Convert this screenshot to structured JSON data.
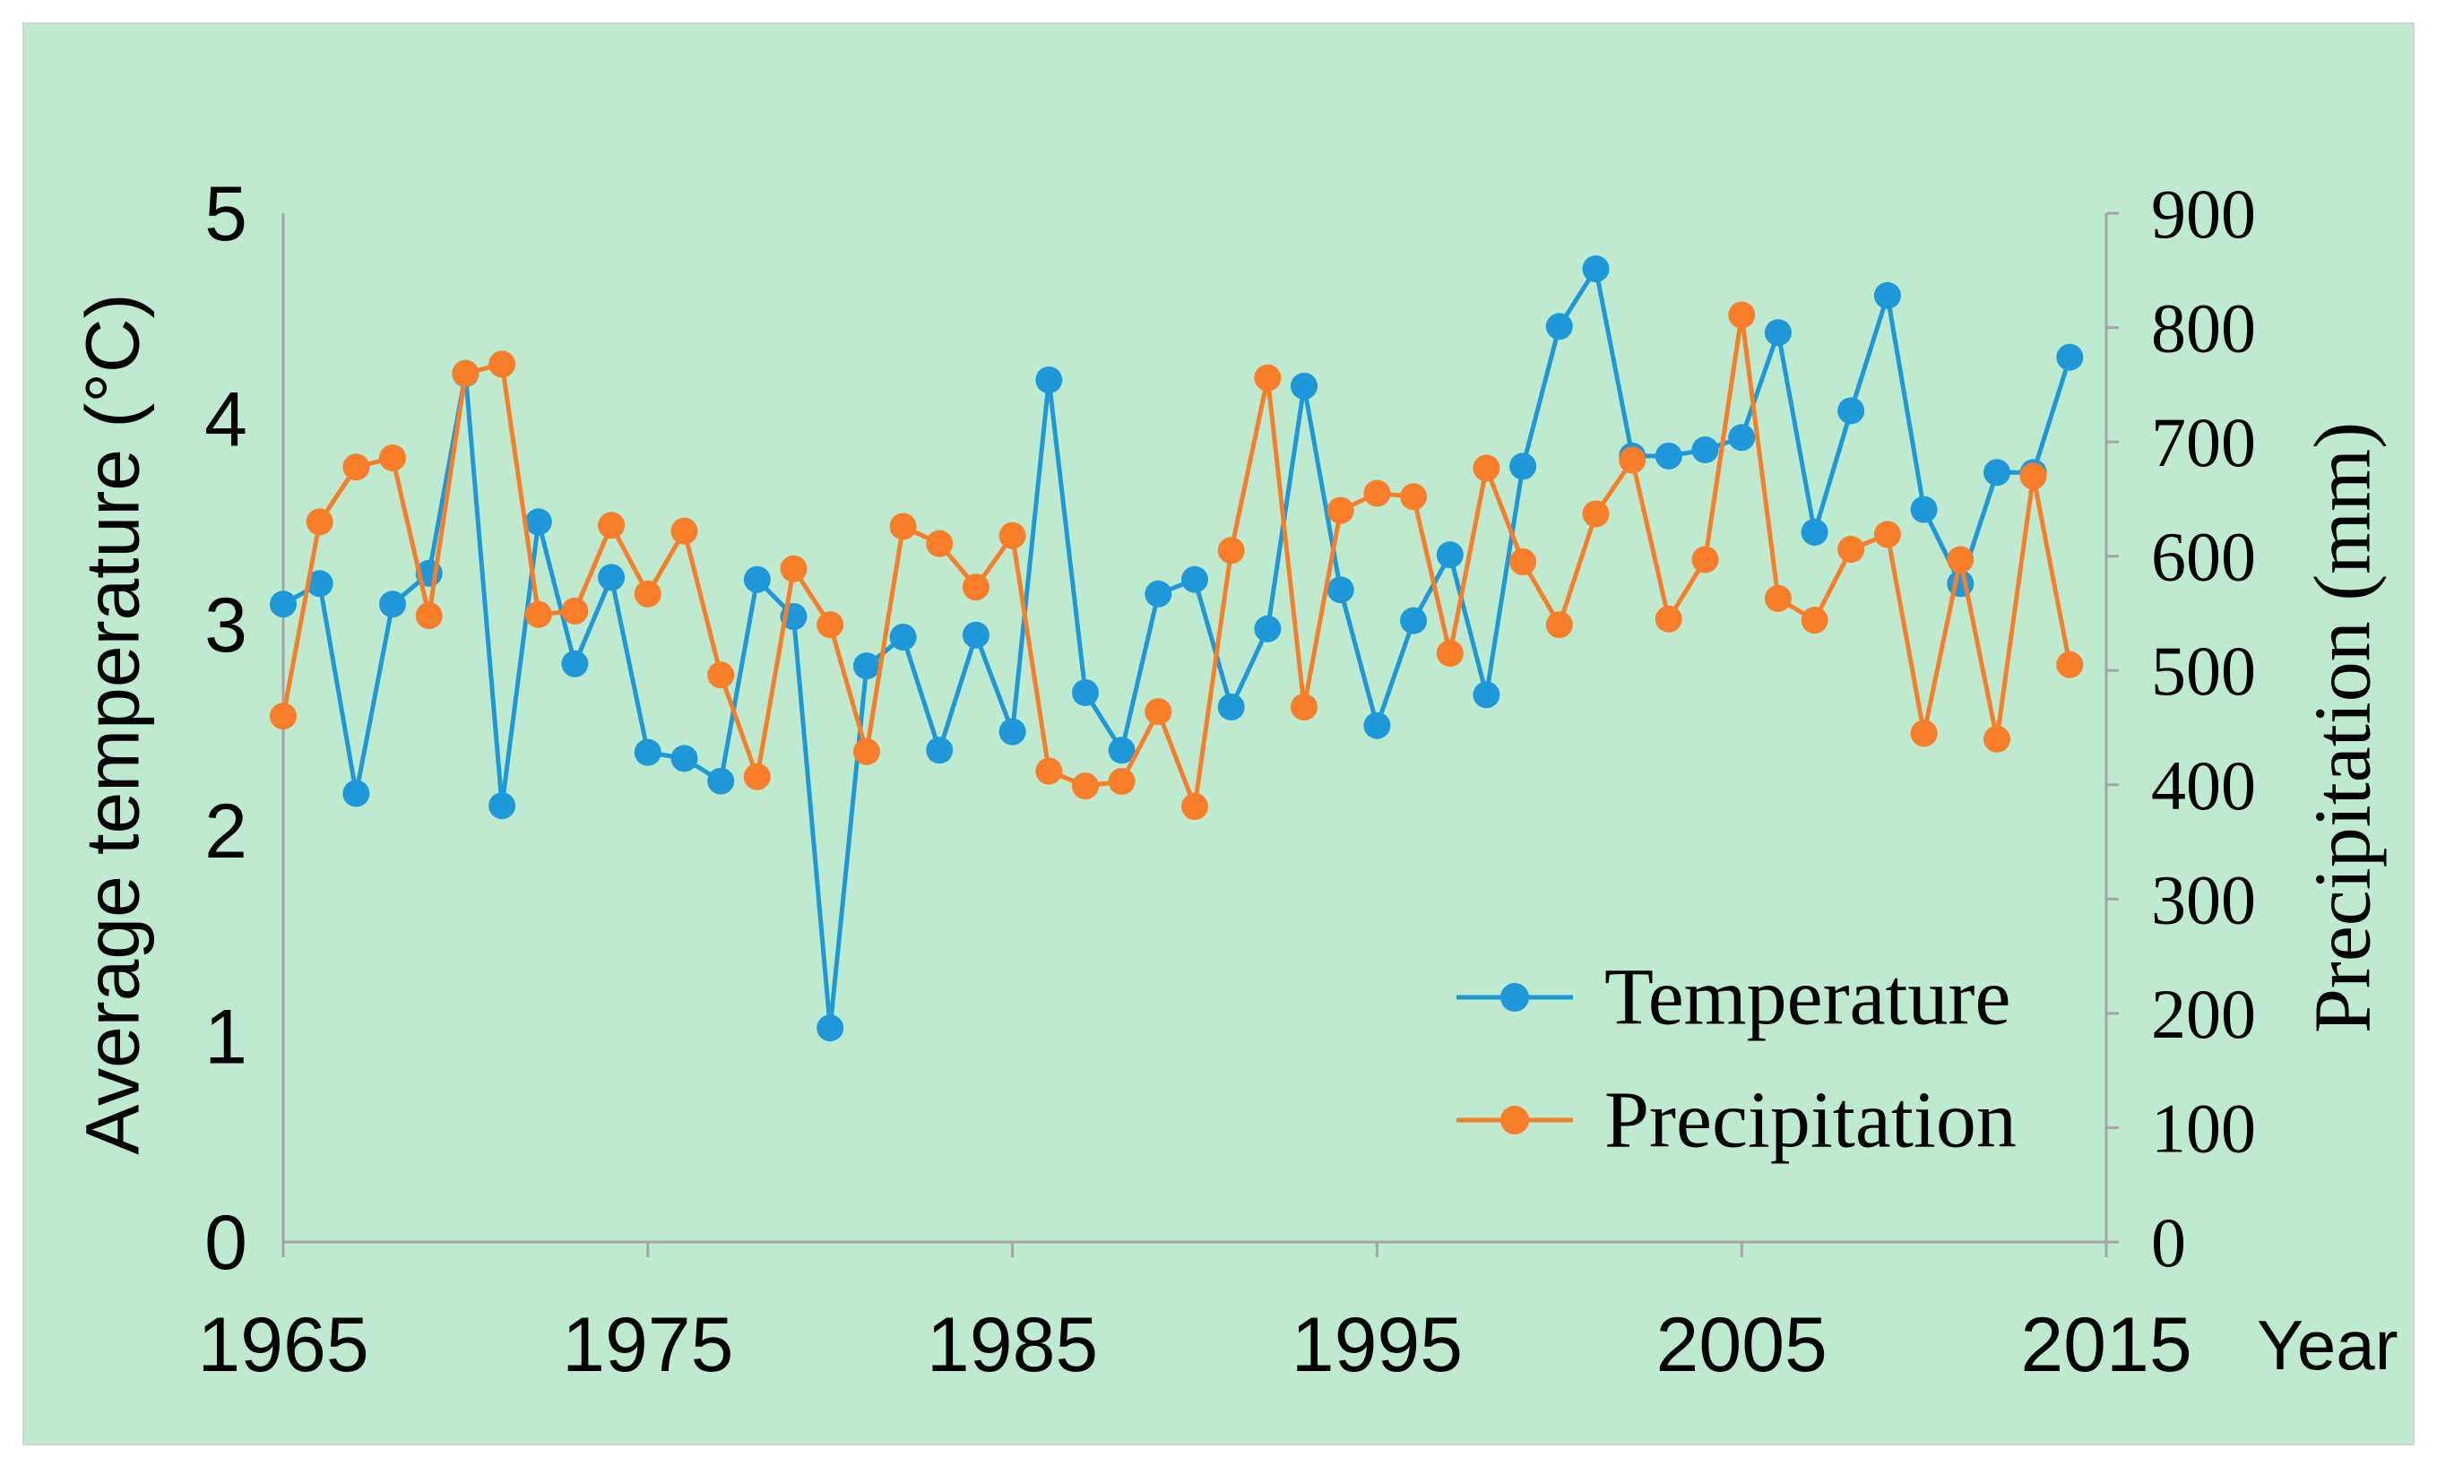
{
  "colors": {
    "background": "#BEEAD0",
    "panel_border": "#D4D4D4",
    "axis": "#A5A5A5"
  },
  "chart_data": {
    "type": "line",
    "x": [
      1965,
      1966,
      1967,
      1968,
      1969,
      1970,
      1971,
      1972,
      1973,
      1974,
      1975,
      1976,
      1977,
      1978,
      1979,
      1980,
      1981,
      1982,
      1983,
      1984,
      1985,
      1986,
      1987,
      1988,
      1989,
      1990,
      1991,
      1992,
      1993,
      1994,
      1995,
      1996,
      1997,
      1998,
      1999,
      2000,
      2001,
      2002,
      2003,
      2004,
      2005,
      2006,
      2007,
      2008,
      2009,
      2010,
      2011,
      2012,
      2013,
      2014
    ],
    "series": [
      {
        "name": "Temperature",
        "axis": "left",
        "color": "#1E98D8",
        "values": [
          3.1,
          3.2,
          2.18,
          3.1,
          3.25,
          4.22,
          2.12,
          3.5,
          2.81,
          3.23,
          2.38,
          2.35,
          2.24,
          3.22,
          3.04,
          1.04,
          2.8,
          2.94,
          2.39,
          2.95,
          2.48,
          4.19,
          2.67,
          2.39,
          3.15,
          3.22,
          2.6,
          2.98,
          4.16,
          3.17,
          2.51,
          3.02,
          3.34,
          2.66,
          3.77,
          4.45,
          4.73,
          3.82,
          3.82,
          3.85,
          3.91,
          4.42,
          3.45,
          4.04,
          4.6,
          3.56,
          3.2,
          3.74,
          3.74,
          4.3
        ]
      },
      {
        "name": "Precipitation",
        "axis": "right",
        "color": "#FA7D2A",
        "values": [
          460,
          630,
          678,
          686,
          548,
          760,
          768,
          549,
          552,
          627,
          567,
          622,
          496,
          407,
          589,
          540,
          429,
          626,
          611,
          573,
          618,
          412,
          399,
          403,
          464,
          381,
          605,
          756,
          468,
          640,
          655,
          652,
          515,
          677,
          595,
          540,
          637,
          684,
          545,
          597,
          811,
          563,
          544,
          606,
          619,
          445,
          597,
          440,
          670,
          505
        ]
      }
    ],
    "xlabel": "Year",
    "ylabel_left": "Average temperature (°C)",
    "ylabel_right": "Precipitation (mm)",
    "xlim": [
      1965,
      2015
    ],
    "ylim_left": [
      0,
      5
    ],
    "ylim_right": [
      0,
      900
    ],
    "x_ticks": [
      "1965",
      "1975",
      "1985",
      "1995",
      "2005",
      "2015"
    ],
    "y_ticks_left": [
      "0",
      "1",
      "2",
      "3",
      "4",
      "5"
    ],
    "y_ticks_right": [
      "0",
      "100",
      "200",
      "300",
      "400",
      "500",
      "600",
      "700",
      "800",
      "900"
    ]
  }
}
